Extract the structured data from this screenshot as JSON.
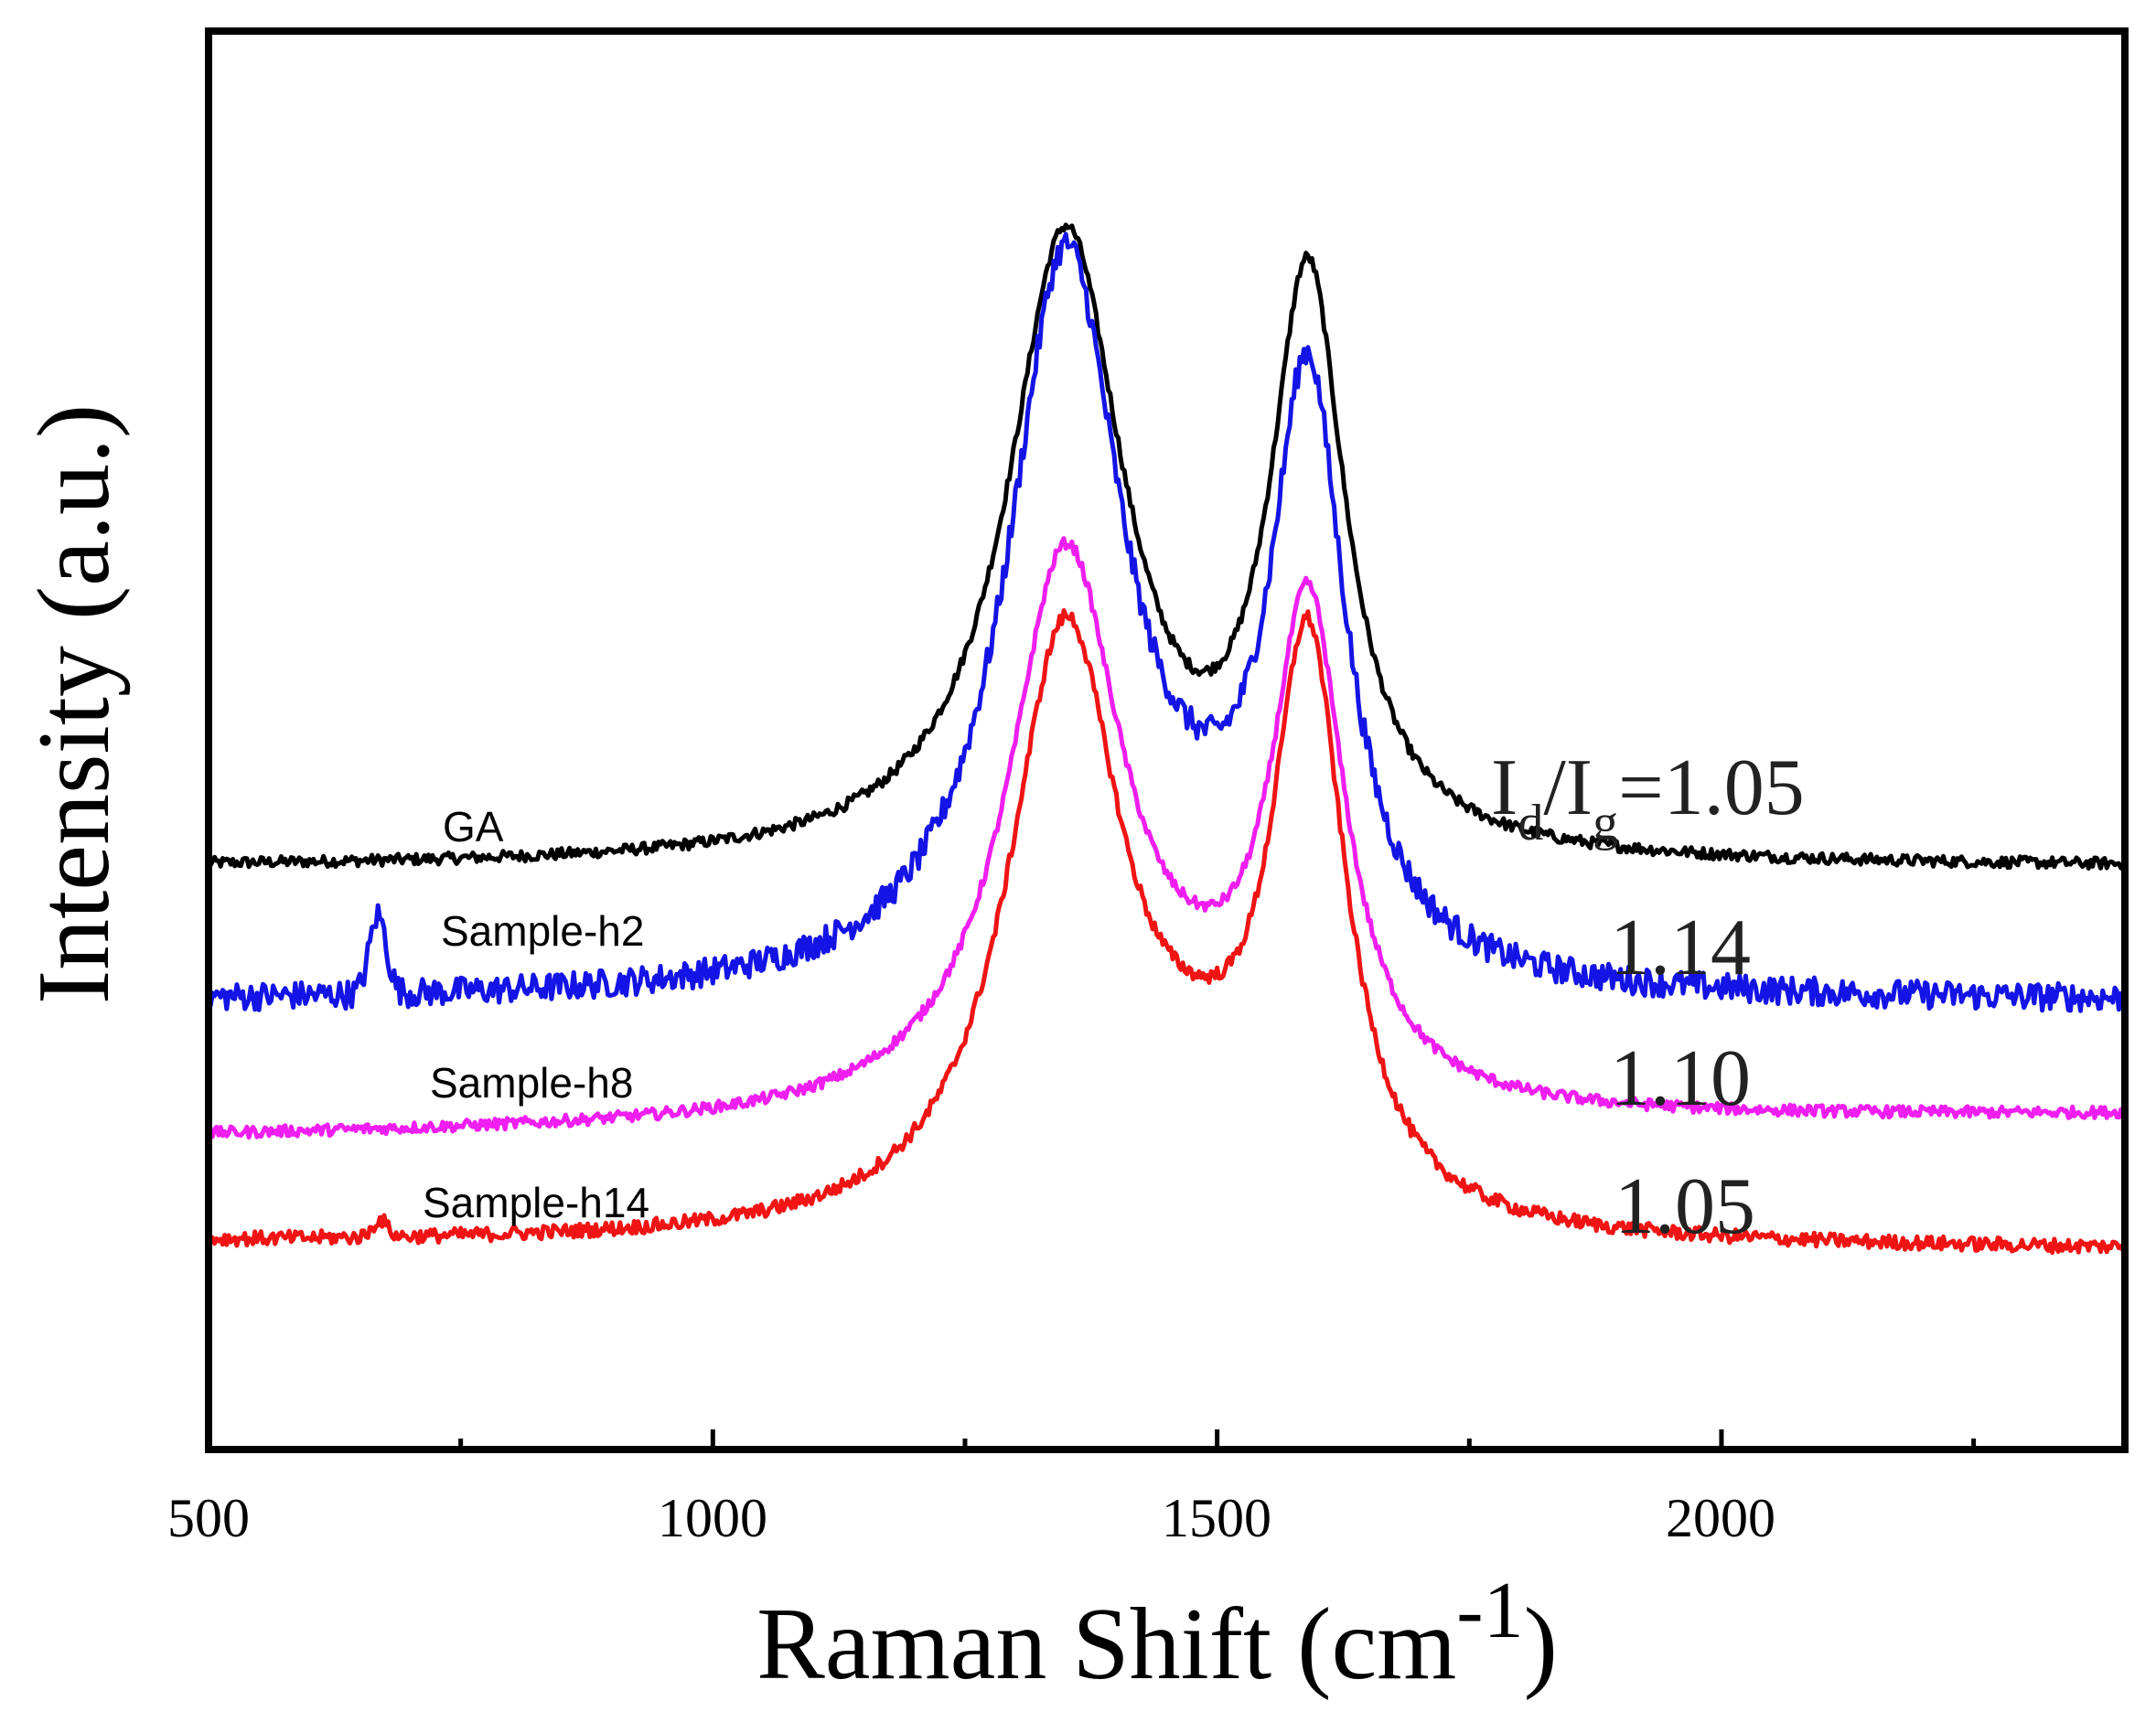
{
  "chart_data": {
    "type": "line",
    "title": "",
    "xlabel": "Raman Shift (cm",
    "xlabel_sup": "-1",
    "xlabel_close": ")",
    "ylabel": "Intensity (a.u.)",
    "xlim": [
      500,
      2400
    ],
    "ylim": [
      0,
      100
    ],
    "x_ticks": [
      500,
      1000,
      1500,
      2000
    ],
    "x_tick_labels": [
      "500",
      "1000",
      "1500",
      "2000"
    ],
    "x_minor_ticks": [
      750,
      1250,
      1750,
      2250
    ],
    "y_ticks_shown": false,
    "grid": false,
    "ratio_prefix": {
      "I1": "I",
      "sub1": "d",
      "slash": "/",
      "I2": "I",
      "sub2": "g",
      "eq": "=",
      "value": "1.05"
    },
    "series": [
      {
        "name": "GA",
        "color": "#000000",
        "ratio_label": "1.05",
        "baseline": 41,
        "end_level": 41,
        "d_height": 44,
        "g_height": 41,
        "valley": 55,
        "noise": 0.4,
        "extra_peaks": []
      },
      {
        "name": "Sample-h2",
        "color": "#1414e6",
        "ratio_label": "1.14",
        "baseline": 31.5,
        "end_level": 31.5,
        "d_height": 52,
        "g_height": 43,
        "valley": 51,
        "noise": 1.0,
        "extra_peaks": [
          {
            "x": 668,
            "height": 5.5,
            "width": 12
          }
        ]
      },
      {
        "name": "Sample-h8",
        "color": "#f01ef0",
        "ratio_label": "1.10",
        "baseline": 22,
        "end_level": 23.5,
        "d_height": 40,
        "g_height": 36,
        "valley": 38.5,
        "noise": 0.4,
        "extra_peaks": []
      },
      {
        "name": "Sample-h14",
        "color": "#f01414",
        "ratio_label": "1.05",
        "baseline": 14.5,
        "end_level": 14,
        "d_height": 43,
        "g_height": 42,
        "valley": 33.5,
        "noise": 0.5,
        "extra_peaks": [
          {
            "x": 670,
            "height": 1.2,
            "width": 10
          }
        ]
      }
    ],
    "peaks": {
      "D_band_x": 1350,
      "G_band_x": 1590
    }
  }
}
